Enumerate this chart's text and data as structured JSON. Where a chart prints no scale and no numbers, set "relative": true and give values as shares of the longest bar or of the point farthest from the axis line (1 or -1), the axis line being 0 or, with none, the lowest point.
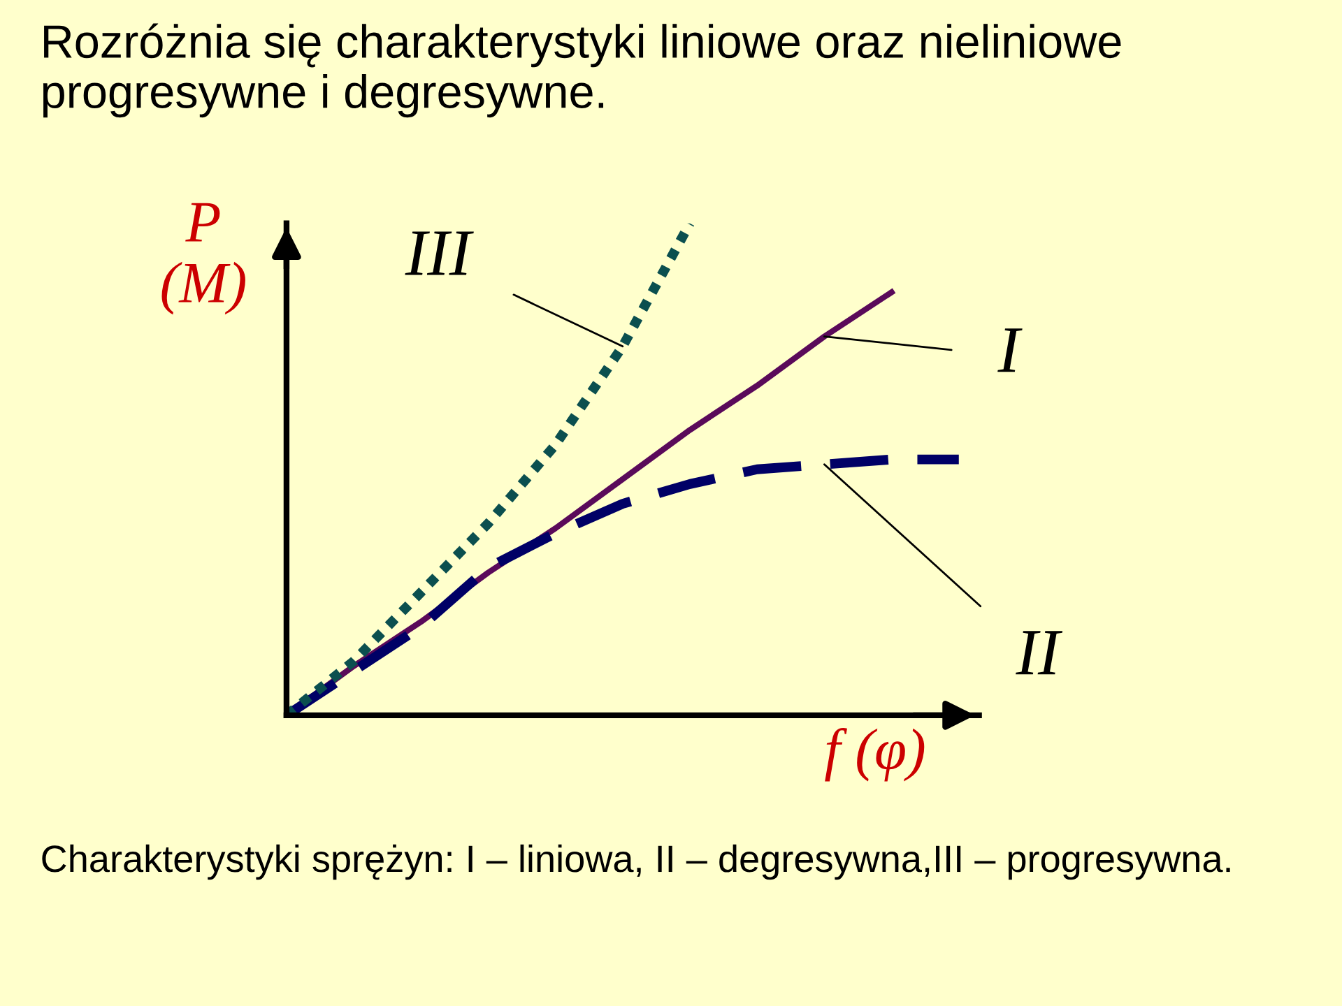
{
  "chart_data": {
    "type": "line",
    "relative": true,
    "title": "Rozróżnia się charakterystyki liniowe oraz nieliniowe progresywne i degresywne.",
    "xlabel": "f (φ)",
    "ylabel": "P\n(M)",
    "annotations": [
      "Charakterystyki sprężyn: I – liniowa, II – degresywna,III – progresywna."
    ],
    "categories": [
      null,
      null,
      null,
      null,
      null,
      null,
      null,
      null,
      null,
      null,
      null
    ],
    "series": [
      {
        "name": "I",
        "color": "#5a0a5a",
        "line_style": "solid",
        "values": [
          0,
          0.1,
          0.19,
          0.29,
          0.38,
          0.48,
          0.58,
          0.67,
          0.77,
          0.86,
          null
        ]
      },
      {
        "name": "II",
        "color": "#000066",
        "line_style": "dashed",
        "values": [
          0,
          0.09,
          0.18,
          0.3,
          0.37,
          0.43,
          0.47,
          0.5,
          0.51,
          0.52,
          0.52
        ]
      },
      {
        "name": "III",
        "color": "#0b4f4f",
        "line_style": "dotted",
        "values": [
          0,
          0.11,
          0.25,
          0.39,
          0.55,
          0.75,
          1.0,
          null,
          null,
          null,
          null
        ]
      }
    ],
    "legend": false,
    "marker": "none"
  }
}
